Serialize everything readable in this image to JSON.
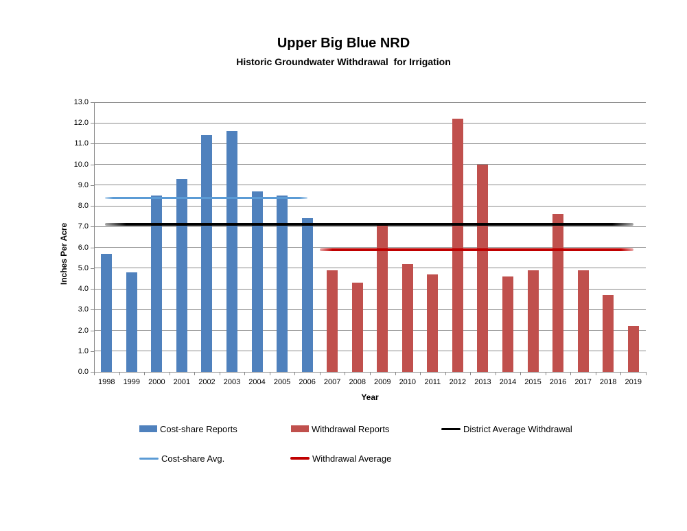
{
  "chart_data": {
    "type": "bar",
    "title": "Upper Big Blue NRD",
    "subtitle": "Historic Groundwater Withdrawal  for Irrigation",
    "xlabel": "Year",
    "ylabel": "Inches Per Acre",
    "ylim": [
      0.0,
      13.0
    ],
    "ytick_step": 1.0,
    "ytick_labels": [
      "0.0",
      "1.0",
      "2.0",
      "3.0",
      "4.0",
      "5.0",
      "6.0",
      "7.0",
      "8.0",
      "9.0",
      "10.0",
      "11.0",
      "12.0",
      "13.0"
    ],
    "grid": true,
    "legend_position": "bottom",
    "background_color": "#ffffff",
    "gridline_color": "#878787",
    "categories": [
      "1998",
      "1999",
      "2000",
      "2001",
      "2002",
      "2003",
      "2004",
      "2005",
      "2006",
      "2007",
      "2008",
      "2009",
      "2010",
      "2011",
      "2012",
      "2013",
      "2014",
      "2015",
      "2016",
      "2017",
      "2018",
      "2019"
    ],
    "bar_series": [
      {
        "name": "Cost-share Reports",
        "color": "#4F81BD",
        "values": [
          5.7,
          4.8,
          8.5,
          9.3,
          11.4,
          11.6,
          8.7,
          8.5,
          7.4,
          null,
          null,
          null,
          null,
          null,
          null,
          null,
          null,
          null,
          null,
          null,
          null,
          null
        ]
      },
      {
        "name": "Withdrawal Reports",
        "color": "#C0504D",
        "values": [
          null,
          null,
          null,
          null,
          null,
          null,
          null,
          null,
          null,
          4.9,
          4.3,
          7.1,
          5.2,
          4.7,
          12.2,
          10.0,
          4.6,
          4.9,
          7.6,
          4.9,
          3.7,
          2.2
        ]
      }
    ],
    "line_series": [
      {
        "name": "Cost-share Avg.",
        "color": "#5B9BD5",
        "value": 8.4,
        "from": "1998",
        "to": "2006",
        "from_edge": false,
        "thickness": 3
      },
      {
        "name": "District Average Withdrawal",
        "color": "#000000",
        "value": 7.1,
        "from": "1998",
        "to": "2019",
        "from_edge": false,
        "thickness": 4
      },
      {
        "name": "Withdrawal Average",
        "color": "#C00000",
        "value": 5.9,
        "from": "2007",
        "to": "2019",
        "from_edge": true,
        "thickness": 4
      }
    ],
    "legend_rows": [
      [
        {
          "label": "Cost-share Reports",
          "marker": "rect",
          "color": "#4F81BD"
        },
        {
          "label": "Withdrawal Reports",
          "marker": "rect",
          "color": "#C0504D"
        },
        {
          "label": "District Average Withdrawal",
          "marker": "line",
          "color": "#000000",
          "thickness": 3
        }
      ],
      [
        {
          "label": "Cost-share Avg.",
          "marker": "line",
          "color": "#5B9BD5",
          "thickness": 3
        },
        {
          "label": "Withdrawal Average",
          "marker": "line",
          "color": "#C00000",
          "thickness": 4
        }
      ]
    ]
  }
}
